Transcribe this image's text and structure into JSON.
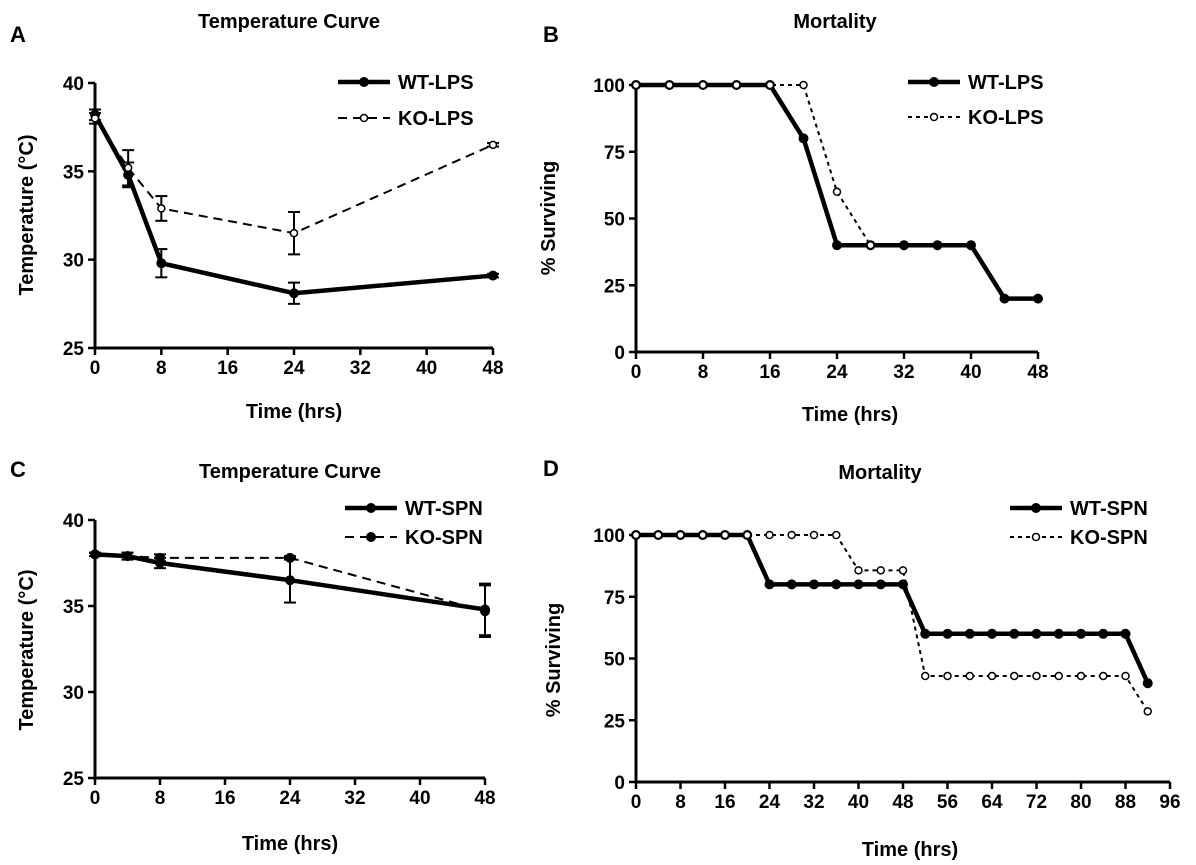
{
  "chart_data": [
    {
      "panel": "A",
      "type": "line",
      "title": "Temperature Curve",
      "xlabel": "Time (hrs)",
      "ylabel": "Temperature (°C)",
      "xlim": [
        0,
        48
      ],
      "ylim": [
        25,
        40
      ],
      "xticks": [
        0,
        8,
        16,
        24,
        32,
        40,
        48
      ],
      "yticks": [
        25,
        30,
        35,
        40
      ],
      "legend_position": "top-right",
      "series": [
        {
          "name": "WT-LPS",
          "style": "solid",
          "marker": "filled",
          "x": [
            0,
            4,
            8,
            24,
            48
          ],
          "y": [
            38.2,
            34.8,
            29.8,
            28.1,
            29.1
          ],
          "err": [
            0.3,
            0.7,
            0.8,
            0.6,
            0.1
          ]
        },
        {
          "name": "KO-LPS",
          "style": "dashed",
          "marker": "open",
          "x": [
            0,
            4,
            8,
            24,
            48
          ],
          "y": [
            38.0,
            35.2,
            32.9,
            31.5,
            36.5
          ],
          "err": [
            0.3,
            1.0,
            0.7,
            1.2,
            0.1
          ]
        }
      ]
    },
    {
      "panel": "B",
      "type": "line",
      "title": "Mortality",
      "xlabel": "Time (hrs)",
      "ylabel": "% Surviving",
      "xlim": [
        0,
        48
      ],
      "ylim": [
        0,
        100
      ],
      "xticks": [
        0,
        8,
        16,
        24,
        32,
        40,
        48
      ],
      "yticks": [
        0,
        25,
        50,
        75,
        100
      ],
      "legend_position": "top-right",
      "series": [
        {
          "name": "WT-LPS",
          "style": "solid",
          "marker": "filled",
          "x": [
            0,
            4,
            8,
            12,
            16,
            20,
            24,
            28,
            32,
            36,
            40,
            44,
            48
          ],
          "y": [
            100,
            100,
            100,
            100,
            100,
            80,
            40,
            40,
            40,
            40,
            40,
            20,
            20
          ]
        },
        {
          "name": "KO-LPS",
          "style": "dotted",
          "marker": "open",
          "x": [
            0,
            4,
            8,
            12,
            16,
            20,
            24,
            28
          ],
          "y": [
            100,
            100,
            100,
            100,
            100,
            100,
            60,
            40
          ]
        }
      ]
    },
    {
      "panel": "C",
      "type": "line",
      "title": "Temperature Curve",
      "xlabel": "Time (hrs)",
      "ylabel": "Temperature (°C)",
      "xlim": [
        0,
        48
      ],
      "ylim": [
        25,
        40
      ],
      "xticks": [
        0,
        8,
        16,
        24,
        32,
        40,
        48
      ],
      "yticks": [
        25,
        30,
        35,
        40
      ],
      "legend_position": "top-right",
      "series": [
        {
          "name": "WT-SPN",
          "style": "solid",
          "marker": "filled",
          "x": [
            0,
            4,
            8,
            24,
            48
          ],
          "y": [
            38.0,
            37.9,
            37.5,
            36.5,
            34.8
          ],
          "err": [
            0.1,
            0.2,
            0.3,
            1.3,
            1.5
          ]
        },
        {
          "name": "KO-SPN",
          "style": "dashed",
          "marker": "filled",
          "x": [
            0,
            4,
            8,
            24,
            48
          ],
          "y": [
            38.0,
            37.9,
            37.8,
            37.8,
            34.7
          ],
          "err": [
            0.1,
            0.2,
            0.2,
            0.1,
            1.5
          ]
        }
      ]
    },
    {
      "panel": "D",
      "type": "line",
      "title": "Mortality",
      "xlabel": "Time (hrs)",
      "ylabel": "% Surviving",
      "xlim": [
        0,
        96
      ],
      "ylim": [
        0,
        100
      ],
      "xticks": [
        0,
        8,
        16,
        24,
        32,
        40,
        48,
        56,
        64,
        72,
        80,
        88,
        96
      ],
      "yticks": [
        0,
        25,
        50,
        75,
        100
      ],
      "legend_position": "top-right",
      "series": [
        {
          "name": "WT-SPN",
          "style": "solid",
          "marker": "filled",
          "x": [
            0,
            4,
            8,
            12,
            16,
            20,
            24,
            28,
            32,
            36,
            40,
            44,
            48,
            52,
            56,
            60,
            64,
            68,
            72,
            76,
            80,
            84,
            88,
            92
          ],
          "y": [
            100,
            100,
            100,
            100,
            100,
            100,
            80,
            80,
            80,
            80,
            80,
            80,
            80,
            60,
            60,
            60,
            60,
            60,
            60,
            60,
            60,
            60,
            60,
            40
          ]
        },
        {
          "name": "KO-SPN",
          "style": "dotted",
          "marker": "open",
          "x": [
            0,
            4,
            8,
            12,
            16,
            20,
            24,
            28,
            32,
            36,
            40,
            44,
            48,
            52,
            56,
            60,
            64,
            68,
            72,
            76,
            80,
            84,
            88,
            92
          ],
          "y": [
            100,
            100,
            100,
            100,
            100,
            100,
            100,
            100,
            100,
            100,
            85.7,
            85.7,
            85.7,
            42.9,
            42.9,
            42.9,
            42.9,
            42.9,
            42.9,
            42.9,
            42.9,
            42.9,
            42.9,
            28.6
          ]
        }
      ]
    }
  ]
}
